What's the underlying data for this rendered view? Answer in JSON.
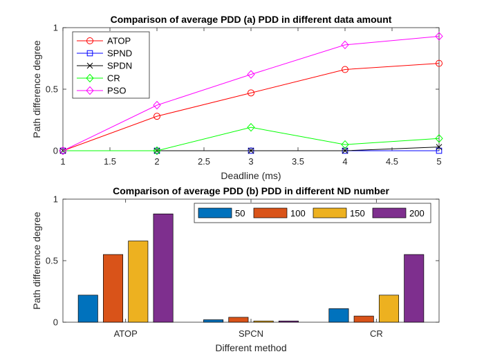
{
  "chart_data": [
    {
      "type": "line",
      "title": "Comparison of average PDD (a) PDD in different data amount",
      "xlabel": "Deadline (ms)",
      "ylabel": "Path difference degree",
      "xlim": [
        1,
        5
      ],
      "ylim": [
        0,
        1
      ],
      "xticks": [
        "1",
        "1.5",
        "2",
        "2.5",
        "3",
        "3.5",
        "4",
        "4.5",
        "5"
      ],
      "yticks": [
        "0",
        "0.5",
        "1"
      ],
      "grid": false,
      "legend": "top-left",
      "x": [
        1,
        2,
        3,
        4,
        5
      ],
      "series": [
        {
          "name": "ATOP",
          "color": "#ff0000",
          "marker": "circle",
          "values": [
            0,
            0.28,
            0.47,
            0.66,
            0.71
          ]
        },
        {
          "name": "SPND",
          "color": "#0000ff",
          "marker": "square",
          "values": [
            0,
            0,
            0,
            0,
            0
          ]
        },
        {
          "name": "SPDN",
          "color": "#000000",
          "marker": "x",
          "values": [
            0,
            0,
            0,
            0,
            0.03
          ]
        },
        {
          "name": "CR",
          "color": "#00ff00",
          "marker": "diamond",
          "values": [
            0,
            0,
            0.19,
            0.05,
            0.1
          ]
        },
        {
          "name": "PSO",
          "color": "#ff00ff",
          "marker": "diamond",
          "values": [
            0,
            0.37,
            0.62,
            0.86,
            0.93
          ]
        }
      ]
    },
    {
      "type": "bar",
      "title": "Comparison of average PDD (b) PDD in different ND number",
      "xlabel": "Different method",
      "ylabel": "Path difference degree",
      "ylim": [
        0,
        1
      ],
      "yticks": [
        "0",
        "0.5",
        "1"
      ],
      "grid": false,
      "legend": "top-right",
      "categories": [
        "ATOP",
        "SPCN",
        "CR"
      ],
      "series": [
        {
          "name": "50",
          "color": "#0072bd",
          "values": [
            0.22,
            0.02,
            0.11
          ]
        },
        {
          "name": "100",
          "color": "#d95319",
          "values": [
            0.55,
            0.04,
            0.05
          ]
        },
        {
          "name": "150",
          "color": "#edb120",
          "values": [
            0.66,
            0.01,
            0.22
          ]
        },
        {
          "name": "200",
          "color": "#7e2f8e",
          "values": [
            0.88,
            0.01,
            0.55
          ]
        }
      ]
    }
  ]
}
